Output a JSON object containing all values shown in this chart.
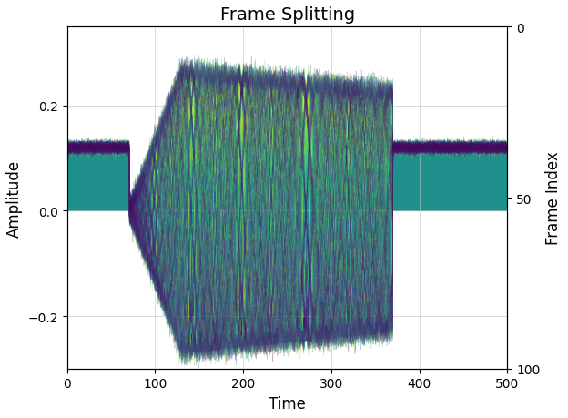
{
  "title": "Frame Splitting",
  "xlabel": "Time",
  "ylabel": "Amplitude",
  "ylabel2": "Frame Index",
  "xlim": [
    0,
    500
  ],
  "ylim": [
    -0.3,
    0.35
  ],
  "yticks": [
    -0.2,
    0,
    0.2
  ],
  "xticks": [
    0,
    100,
    200,
    300,
    400,
    500
  ],
  "yticks2": [
    0,
    50,
    100
  ],
  "n_frames": 100,
  "n_samples": 500,
  "signal_start": 70,
  "signal_end": 370,
  "max_chirp_amplitude": 0.27,
  "dc_level": 0.12,
  "colormap": "viridis",
  "figsize": [
    6.24,
    4.6
  ],
  "dpi": 100,
  "grid_color": "#c0c0c0",
  "title_fontsize": 14,
  "label_fontsize": 12,
  "tick_fontsize": 10,
  "chirp_freq": 0.8,
  "n_time_points": 3000,
  "peak_time": 130
}
